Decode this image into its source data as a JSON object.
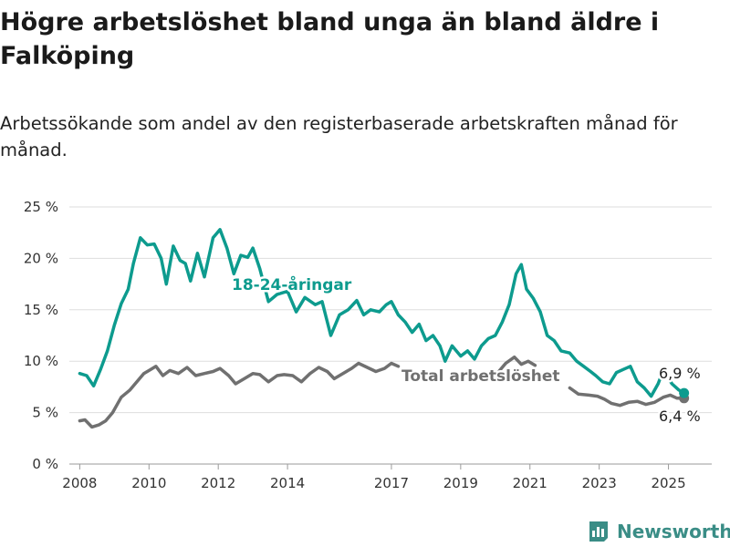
{
  "title": "Högre arbetslöshet bland unga än bland äldre i Falköping",
  "subtitle": "Arbetssökande som andel av den registerbaserade arbetskraften månad för månad.",
  "brand": {
    "name": "Newsworthy"
  },
  "colors": {
    "youth": "#0d9b8e",
    "total": "#707070",
    "brand": "#3a8d86"
  },
  "chart_data": {
    "type": "line",
    "title": "Högre arbetslöshet bland unga än bland äldre i Falköping",
    "ylim": [
      0,
      25
    ],
    "xlim": [
      2007.7,
      2026.25
    ],
    "y_ticks": [
      0,
      5,
      10,
      15,
      20,
      25
    ],
    "y_tick_labels": [
      "0 %",
      "5 %",
      "10 %",
      "15 %",
      "20 %",
      "25 %"
    ],
    "x_ticks": [
      2008,
      2010,
      2012,
      2014,
      2017,
      2019,
      2021,
      2023,
      2025
    ],
    "x_tick_labels": [
      "2008",
      "2010",
      "2012",
      "2014",
      "2017",
      "2019",
      "2021",
      "2023",
      "2025"
    ],
    "grid": "horizontal",
    "series": [
      {
        "name": "18-24-åringar",
        "end_label": "6,9 %",
        "points": [
          [
            2008.0,
            8.8
          ],
          [
            2008.2,
            8.6
          ],
          [
            2008.4,
            7.6
          ],
          [
            2008.6,
            9.2
          ],
          [
            2008.8,
            11.0
          ],
          [
            2009.0,
            13.5
          ],
          [
            2009.2,
            15.6
          ],
          [
            2009.4,
            17.0
          ],
          [
            2009.55,
            19.5
          ],
          [
            2009.75,
            22.0
          ],
          [
            2009.95,
            21.3
          ],
          [
            2010.15,
            21.4
          ],
          [
            2010.35,
            20.0
          ],
          [
            2010.5,
            17.5
          ],
          [
            2010.7,
            21.2
          ],
          [
            2010.9,
            19.8
          ],
          [
            2011.05,
            19.5
          ],
          [
            2011.2,
            17.8
          ],
          [
            2011.4,
            20.5
          ],
          [
            2011.6,
            18.2
          ],
          [
            2011.85,
            22.0
          ],
          [
            2012.05,
            22.8
          ],
          [
            2012.25,
            21.0
          ],
          [
            2012.45,
            18.5
          ],
          [
            2012.65,
            20.3
          ],
          [
            2012.85,
            20.1
          ],
          [
            2013.0,
            21.0
          ],
          [
            2013.2,
            19.0
          ],
          [
            2013.45,
            15.8
          ],
          [
            2013.7,
            16.5
          ],
          [
            2014.0,
            16.8
          ],
          [
            2014.25,
            14.8
          ],
          [
            2014.5,
            16.2
          ],
          [
            2014.8,
            15.5
          ],
          [
            2015.0,
            15.8
          ],
          [
            2015.25,
            12.5
          ],
          [
            2015.5,
            14.5
          ],
          [
            2015.75,
            15.0
          ],
          [
            2016.0,
            15.9
          ],
          [
            2016.2,
            14.5
          ],
          [
            2016.4,
            15.0
          ],
          [
            2016.65,
            14.8
          ],
          [
            2016.85,
            15.5
          ],
          [
            2017.0,
            15.8
          ],
          [
            2017.2,
            14.5
          ],
          [
            2017.4,
            13.8
          ],
          [
            2017.6,
            12.8
          ],
          [
            2017.8,
            13.6
          ],
          [
            2018.0,
            12.0
          ],
          [
            2018.2,
            12.5
          ],
          [
            2018.4,
            11.5
          ],
          [
            2018.55,
            10.0
          ],
          [
            2018.75,
            11.5
          ],
          [
            2019.0,
            10.5
          ],
          [
            2019.2,
            11.0
          ],
          [
            2019.4,
            10.2
          ],
          [
            2019.6,
            11.5
          ],
          [
            2019.8,
            12.2
          ],
          [
            2020.0,
            12.5
          ],
          [
            2020.2,
            13.8
          ],
          [
            2020.4,
            15.5
          ],
          [
            2020.6,
            18.5
          ],
          [
            2020.75,
            19.4
          ],
          [
            2020.9,
            17.0
          ],
          [
            2021.1,
            16.1
          ],
          [
            2021.3,
            14.8
          ],
          [
            2021.5,
            12.5
          ],
          [
            2021.7,
            12.0
          ],
          [
            2021.9,
            11.0
          ],
          [
            2022.15,
            10.8
          ],
          [
            2022.35,
            10.0
          ],
          [
            2022.55,
            9.5
          ],
          [
            2022.75,
            9.0
          ],
          [
            2022.9,
            8.6
          ],
          [
            2023.1,
            8.0
          ],
          [
            2023.3,
            7.8
          ],
          [
            2023.5,
            8.9
          ],
          [
            2023.7,
            9.2
          ],
          [
            2023.9,
            9.5
          ],
          [
            2024.1,
            8.0
          ],
          [
            2024.3,
            7.4
          ],
          [
            2024.5,
            6.6
          ],
          [
            2024.7,
            7.8
          ],
          [
            2024.85,
            9.1
          ],
          [
            2025.1,
            7.8
          ],
          [
            2025.3,
            7.2
          ],
          [
            2025.45,
            6.9
          ]
        ]
      },
      {
        "name": "Total arbetslöshet",
        "end_label": "6,4 %",
        "points": [
          [
            2008.0,
            4.2
          ],
          [
            2008.15,
            4.3
          ],
          [
            2008.35,
            3.6
          ],
          [
            2008.55,
            3.8
          ],
          [
            2008.75,
            4.2
          ],
          [
            2008.95,
            5.0
          ],
          [
            2009.2,
            6.5
          ],
          [
            2009.45,
            7.2
          ],
          [
            2009.65,
            8.0
          ],
          [
            2009.85,
            8.8
          ],
          [
            2010.05,
            9.2
          ],
          [
            2010.2,
            9.5
          ],
          [
            2010.4,
            8.6
          ],
          [
            2010.6,
            9.1
          ],
          [
            2010.85,
            8.8
          ],
          [
            2011.1,
            9.4
          ],
          [
            2011.35,
            8.6
          ],
          [
            2011.6,
            8.8
          ],
          [
            2011.85,
            9.0
          ],
          [
            2012.05,
            9.3
          ],
          [
            2012.3,
            8.6
          ],
          [
            2012.5,
            7.8
          ],
          [
            2012.75,
            8.3
          ],
          [
            2013.0,
            8.8
          ],
          [
            2013.2,
            8.7
          ],
          [
            2013.45,
            8.0
          ],
          [
            2013.7,
            8.6
          ],
          [
            2013.9,
            8.7
          ],
          [
            2014.15,
            8.6
          ],
          [
            2014.4,
            8.0
          ],
          [
            2014.65,
            8.8
          ],
          [
            2014.9,
            9.4
          ],
          [
            2015.15,
            9.0
          ],
          [
            2015.35,
            8.3
          ],
          [
            2015.6,
            8.8
          ],
          [
            2015.85,
            9.3
          ],
          [
            2016.05,
            9.8
          ],
          [
            2016.3,
            9.4
          ],
          [
            2016.55,
            9.0
          ],
          [
            2016.8,
            9.3
          ],
          [
            2017.0,
            9.8
          ],
          [
            2017.2,
            9.5
          ]
        ]
      },
      {
        "name": "",
        "points": [
          [
            2020.1,
            9.0
          ],
          [
            2020.3,
            9.8
          ],
          [
            2020.55,
            10.4
          ],
          [
            2020.75,
            9.7
          ],
          [
            2020.95,
            10.0
          ],
          [
            2021.15,
            9.6
          ]
        ]
      },
      {
        "name": "",
        "points": [
          [
            2022.15,
            7.4
          ],
          [
            2022.4,
            6.8
          ],
          [
            2022.7,
            6.7
          ],
          [
            2022.95,
            6.6
          ],
          [
            2023.15,
            6.3
          ],
          [
            2023.35,
            5.9
          ],
          [
            2023.6,
            5.7
          ],
          [
            2023.85,
            6.0
          ],
          [
            2024.1,
            6.1
          ],
          [
            2024.35,
            5.8
          ],
          [
            2024.6,
            6.0
          ],
          [
            2024.85,
            6.5
          ],
          [
            2025.05,
            6.7
          ],
          [
            2025.25,
            6.4
          ],
          [
            2025.45,
            6.4
          ]
        ]
      }
    ]
  }
}
